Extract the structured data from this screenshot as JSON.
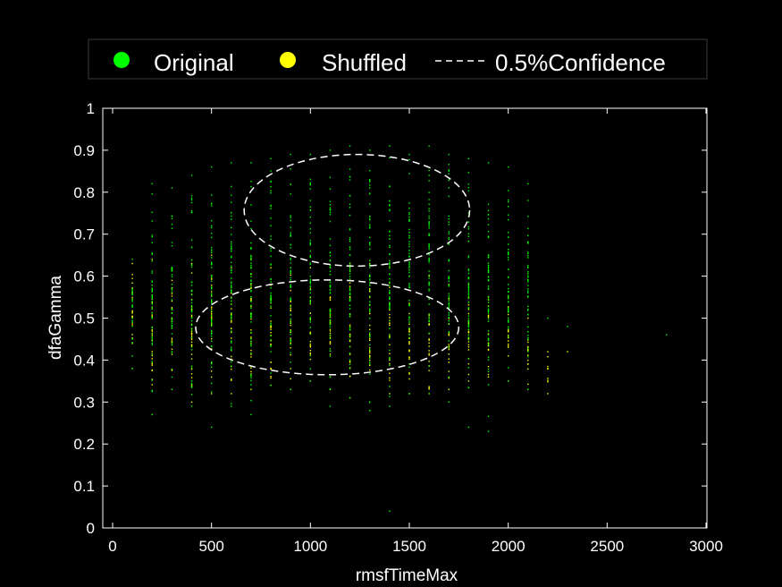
{
  "chart_data": {
    "type": "scatter",
    "xlabel": "rmsfTimeMax",
    "ylabel": "dfaGamma",
    "xlim": [
      0,
      3000
    ],
    "ylim": [
      0,
      1
    ],
    "x_ticks": [
      0,
      500,
      1000,
      1500,
      2000,
      2500,
      3000
    ],
    "y_ticks": [
      0,
      0.1,
      0.2,
      0.3,
      0.4,
      0.5,
      0.6,
      0.7,
      0.8,
      0.9,
      1
    ],
    "grid": false,
    "background": "#000000",
    "legend": {
      "placement": "top",
      "entries": [
        {
          "label": "Original",
          "color": "#00ff00",
          "marker": "dot"
        },
        {
          "label": "Shuffled",
          "color": "#ffff00",
          "marker": "dot"
        },
        {
          "label": "0.5%Confidence",
          "color": "#ffffff",
          "marker": "dashed-line"
        }
      ]
    },
    "series": [
      {
        "name": "Original",
        "color": "#00ff00",
        "columns": [
          {
            "x": 100,
            "y_min": 0.38,
            "y_max": 0.64
          },
          {
            "x": 200,
            "y_min": 0.27,
            "y_max": 0.82
          },
          {
            "x": 300,
            "y_min": 0.33,
            "y_max": 0.81
          },
          {
            "x": 400,
            "y_min": 0.29,
            "y_max": 0.84
          },
          {
            "x": 500,
            "y_min": 0.24,
            "y_max": 0.86
          },
          {
            "x": 600,
            "y_min": 0.29,
            "y_max": 0.87
          },
          {
            "x": 700,
            "y_min": 0.27,
            "y_max": 0.87
          },
          {
            "x": 800,
            "y_min": 0.34,
            "y_max": 0.88
          },
          {
            "x": 900,
            "y_min": 0.33,
            "y_max": 0.89
          },
          {
            "x": 1000,
            "y_min": 0.35,
            "y_max": 0.89
          },
          {
            "x": 1100,
            "y_min": 0.29,
            "y_max": 0.9
          },
          {
            "x": 1200,
            "y_min": 0.31,
            "y_max": 0.91
          },
          {
            "x": 1300,
            "y_min": 0.28,
            "y_max": 0.9
          },
          {
            "x": 1400,
            "y_min": 0.29,
            "y_max": 0.91
          },
          {
            "x": 1500,
            "y_min": 0.32,
            "y_max": 0.89
          },
          {
            "x": 1600,
            "y_min": 0.32,
            "y_max": 0.91
          },
          {
            "x": 1700,
            "y_min": 0.3,
            "y_max": 0.89
          },
          {
            "x": 1800,
            "y_min": 0.24,
            "y_max": 0.88
          },
          {
            "x": 1900,
            "y_min": 0.23,
            "y_max": 0.87
          },
          {
            "x": 2000,
            "y_min": 0.35,
            "y_max": 0.86
          },
          {
            "x": 2100,
            "y_min": 0.33,
            "y_max": 0.82
          }
        ],
        "outliers": [
          {
            "x": 1400,
            "y": 0.04
          },
          {
            "x": 2200,
            "y": 0.5
          },
          {
            "x": 2300,
            "y": 0.48
          },
          {
            "x": 2800,
            "y": 0.46
          }
        ]
      },
      {
        "name": "Shuffled",
        "color": "#ffff00",
        "columns": [
          {
            "x": 100,
            "y_min": 0.38,
            "y_max": 0.63
          },
          {
            "x": 200,
            "y_min": 0.27,
            "y_max": 0.64
          },
          {
            "x": 300,
            "y_min": 0.33,
            "y_max": 0.62
          },
          {
            "x": 400,
            "y_min": 0.3,
            "y_max": 0.63
          },
          {
            "x": 500,
            "y_min": 0.32,
            "y_max": 0.65
          },
          {
            "x": 600,
            "y_min": 0.32,
            "y_max": 0.62
          },
          {
            "x": 700,
            "y_min": 0.33,
            "y_max": 0.64
          },
          {
            "x": 800,
            "y_min": 0.34,
            "y_max": 0.62
          },
          {
            "x": 900,
            "y_min": 0.33,
            "y_max": 0.62
          },
          {
            "x": 1000,
            "y_min": 0.35,
            "y_max": 0.62
          },
          {
            "x": 1100,
            "y_min": 0.33,
            "y_max": 0.62
          },
          {
            "x": 1200,
            "y_min": 0.31,
            "y_max": 0.63
          },
          {
            "x": 1300,
            "y_min": 0.28,
            "y_max": 0.63
          },
          {
            "x": 1400,
            "y_min": 0.32,
            "y_max": 0.62
          },
          {
            "x": 1500,
            "y_min": 0.32,
            "y_max": 0.6
          },
          {
            "x": 1600,
            "y_min": 0.32,
            "y_max": 0.6
          },
          {
            "x": 1700,
            "y_min": 0.33,
            "y_max": 0.58
          },
          {
            "x": 1800,
            "y_min": 0.35,
            "y_max": 0.58
          },
          {
            "x": 1900,
            "y_min": 0.36,
            "y_max": 0.55
          },
          {
            "x": 2000,
            "y_min": 0.35,
            "y_max": 0.55
          },
          {
            "x": 2100,
            "y_min": 0.33,
            "y_max": 0.5
          },
          {
            "x": 2200,
            "y_min": 0.32,
            "y_max": 0.42
          }
        ],
        "outliers": [
          {
            "x": 2300,
            "y": 0.42
          }
        ]
      }
    ],
    "confidence_ellipses": [
      {
        "series": "Original",
        "center": [
          1235,
          0.757
        ],
        "radius_x": 570,
        "radius_y": 0.133
      },
      {
        "series": "Shuffled",
        "center": [
          1085,
          0.478
        ],
        "radius_x": 665,
        "radius_y": 0.113
      }
    ]
  }
}
